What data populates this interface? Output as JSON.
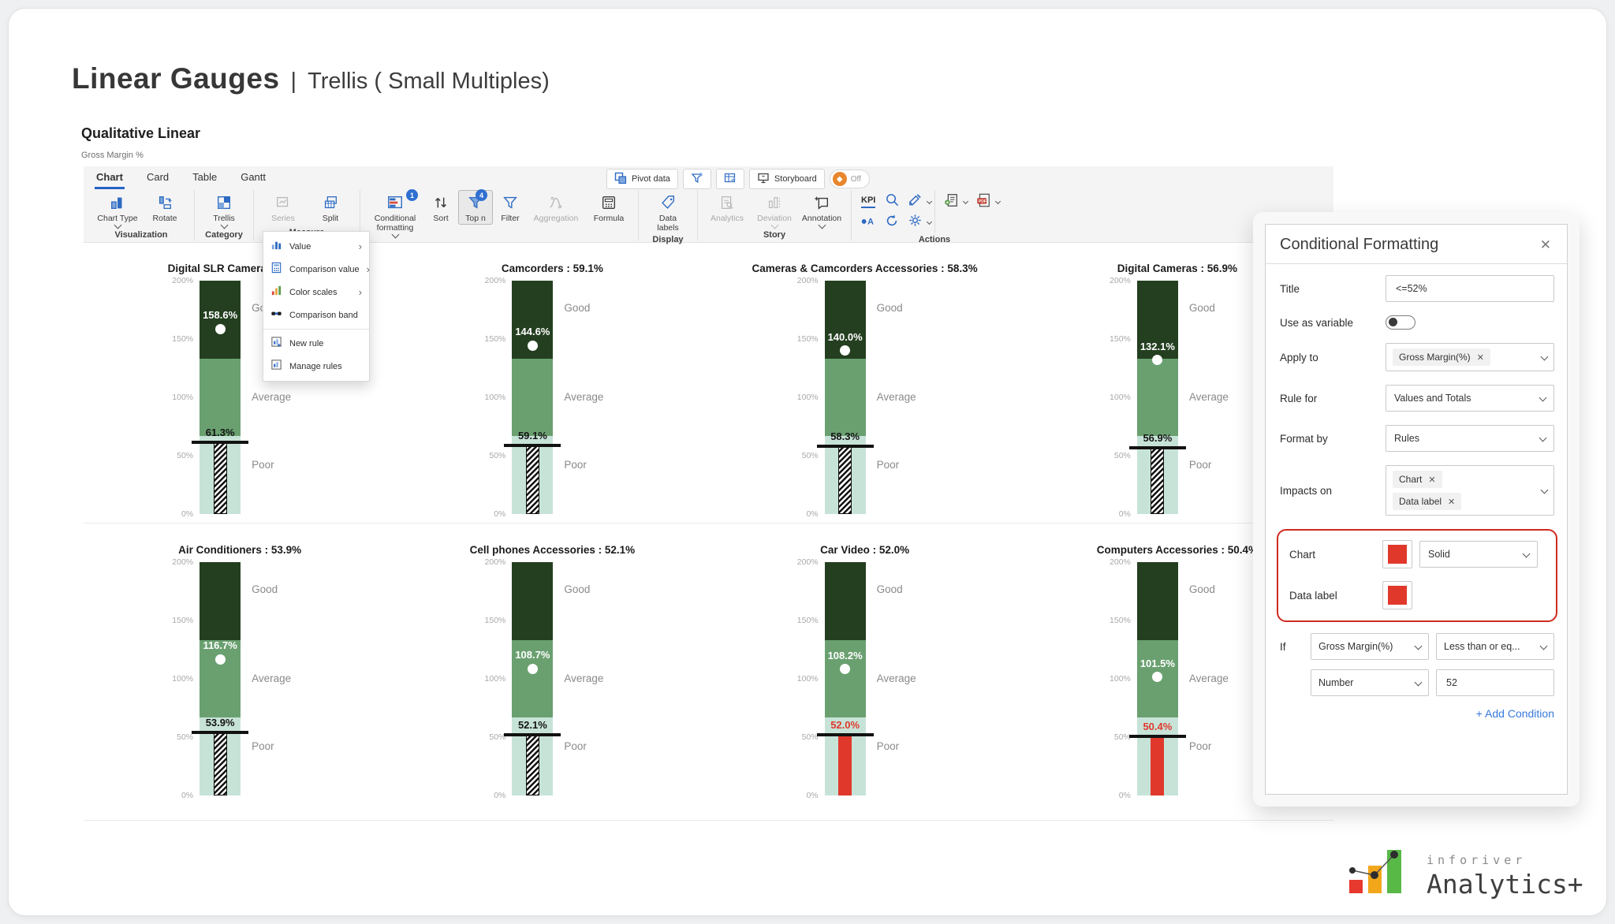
{
  "page": {
    "title_bold": "Linear Gauges",
    "title_sep": "|",
    "title_rest": "Trellis ( Small Multiples)"
  },
  "section": {
    "title": "Qualitative Linear",
    "subtitle": "Gross Margin %"
  },
  "tabs": [
    {
      "label": "Chart"
    },
    {
      "label": "Card"
    },
    {
      "label": "Table"
    },
    {
      "label": "Gantt"
    }
  ],
  "toolbar": {
    "chart_type": "Chart Type",
    "rotate": "Rotate",
    "trellis": "Trellis",
    "series": "Series",
    "split": "Split",
    "conditional_formatting": "Conditional formatting",
    "sort": "Sort",
    "top_n": "Top n",
    "filter": "Filter",
    "aggregation": "Aggregation",
    "formula": "Formula",
    "data_labels": "Data labels",
    "analytics": "Analytics",
    "deviation": "Deviation",
    "annotation": "Annotation",
    "kpi": "KPI",
    "badges": {
      "conditional_formatting": "1",
      "top_n": "4"
    },
    "groups": {
      "visualization": "Visualization",
      "category": "Category",
      "measure": "Measure",
      "display": "Display",
      "story": "Story",
      "actions": "Actions"
    },
    "utility": {
      "pivot": "Pivot data",
      "storyboard": "Storyboard",
      "off": "Off"
    }
  },
  "menu": {
    "items": [
      {
        "label": "Value",
        "has_submenu": true
      },
      {
        "label": "Comparison value",
        "has_submenu": true
      },
      {
        "label": "Color scales",
        "has_submenu": true
      },
      {
        "label": "Comparison band",
        "has_submenu": false
      },
      {
        "label": "New rule",
        "has_submenu": false
      },
      {
        "label": "Manage rules",
        "has_submenu": false
      }
    ]
  },
  "chart_data": {
    "type": "bar",
    "subtype": "linear-qualitative-gauge-trellis",
    "title": "Qualitative Linear",
    "measure": "Gross Margin %",
    "axis": {
      "min": 0,
      "max": 200,
      "ticks": [
        "200%",
        "150%",
        "100%",
        "50%",
        "0%"
      ],
      "grid": false
    },
    "bands": [
      {
        "label": "Good",
        "from": 133.3,
        "to": 200,
        "color": "#243f20"
      },
      {
        "label": "Average",
        "from": 66.7,
        "to": 133.3,
        "color": "#6aa070"
      },
      {
        "label": "Poor",
        "from": 0,
        "to": 66.7,
        "color": "#c7e3d8"
      }
    ],
    "gauges": [
      {
        "title": "Digital SLR Cameras : 61.3%",
        "marker": 158.6,
        "marker_label": "158.6%",
        "target": 61.3,
        "target_label": "61.3%",
        "alert": false
      },
      {
        "title": "Camcorders : 59.1%",
        "marker": 144.6,
        "marker_label": "144.6%",
        "target": 59.1,
        "target_label": "59.1%",
        "alert": false
      },
      {
        "title": "Cameras & Camcorders Accessories : 58.3%",
        "marker": 140.0,
        "marker_label": "140.0%",
        "target": 58.3,
        "target_label": "58.3%",
        "alert": false
      },
      {
        "title": "Digital Cameras : 56.9%",
        "marker": 132.1,
        "marker_label": "132.1%",
        "target": 56.9,
        "target_label": "56.9%",
        "alert": false
      },
      {
        "title": "Air Conditioners : 53.9%",
        "marker": 116.7,
        "marker_label": "116.7%",
        "target": 53.9,
        "target_label": "53.9%",
        "alert": false
      },
      {
        "title": "Cell phones Accessories : 52.1%",
        "marker": 108.7,
        "marker_label": "108.7%",
        "target": 52.1,
        "target_label": "52.1%",
        "alert": false
      },
      {
        "title": "Car Video : 52.0%",
        "marker": 108.2,
        "marker_label": "108.2%",
        "target": 52.0,
        "target_label": "52.0%",
        "alert": true
      },
      {
        "title": "Computers Accessories : 50.4%",
        "marker": 101.5,
        "marker_label": "101.5%",
        "target": 50.4,
        "target_label": "50.4%",
        "alert": true
      }
    ],
    "alert_color": "#e0392c",
    "target_line_color": "#121212"
  },
  "panel": {
    "title": "Conditional Formatting",
    "close": "✕",
    "fields": {
      "title_label": "Title",
      "title_value": "<=52%",
      "variable_label": "Use as variable",
      "apply_label": "Apply to",
      "apply_chip": "Gross Margin(%)",
      "rule_label": "Rule for",
      "rule_value": "Values and Totals",
      "format_label": "Format by",
      "format_value": "Rules",
      "impacts_label": "Impacts on",
      "impacts_chips": [
        "Chart",
        "Data label"
      ],
      "chart_label": "Chart",
      "chart_style": "Solid",
      "data_label_label": "Data label",
      "if_label": "If",
      "if_field": "Gross Margin(%)",
      "if_operator": "Less than or eq...",
      "value_type": "Number",
      "value": "52",
      "add_condition": "+ Add Condition"
    },
    "accent_red": "#cf2a20",
    "swatch_color": "#e0392c"
  },
  "logo": {
    "brand_top": "inforiver",
    "brand_bottom": "Analytics+"
  }
}
